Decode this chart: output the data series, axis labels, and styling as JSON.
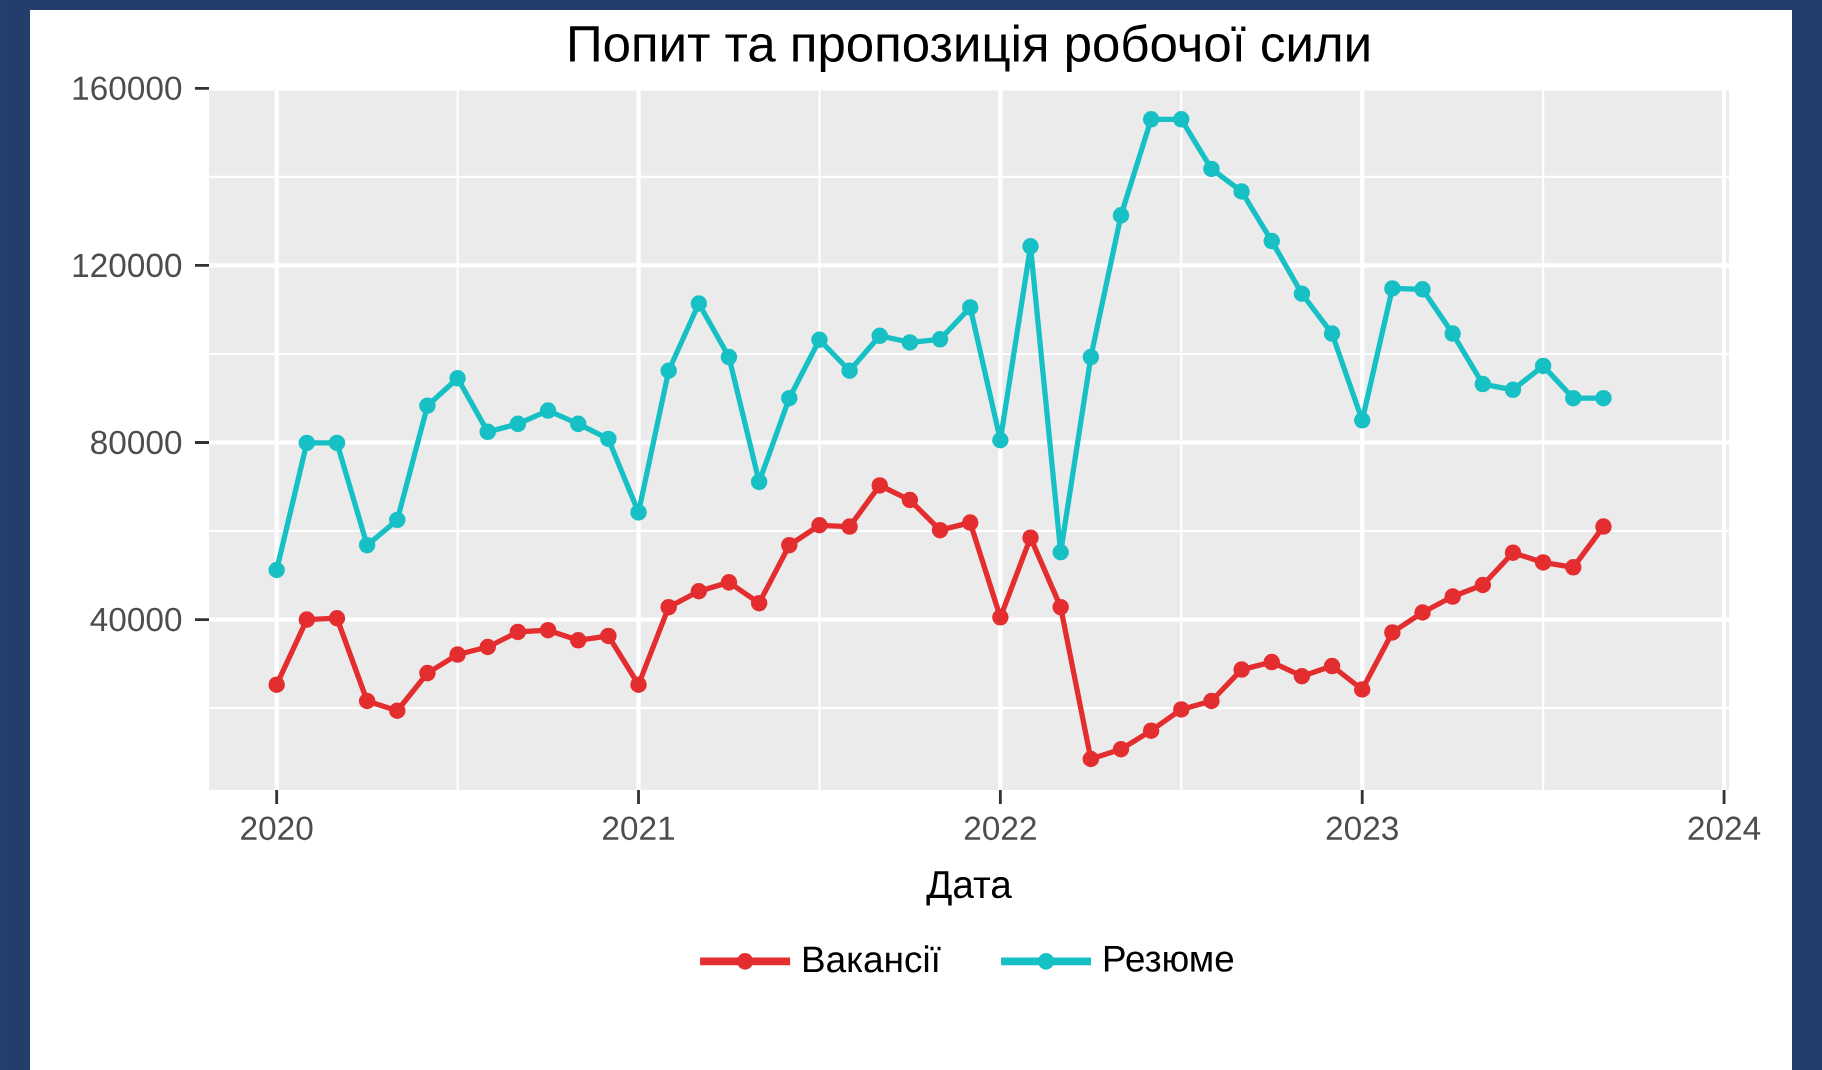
{
  "chart_data": {
    "type": "line",
    "title": "Попит та пропозиція робочої сили",
    "xlabel": "Дата",
    "x": [
      "2020-01",
      "2020-02",
      "2020-03",
      "2020-04",
      "2020-05",
      "2020-06",
      "2020-07",
      "2020-08",
      "2020-09",
      "2020-10",
      "2020-11",
      "2020-12",
      "2021-01",
      "2021-02",
      "2021-03",
      "2021-04",
      "2021-05",
      "2021-06",
      "2021-07",
      "2021-08",
      "2021-09",
      "2021-10",
      "2021-11",
      "2021-12",
      "2022-01",
      "2022-02",
      "2022-03",
      "2022-04",
      "2022-05",
      "2022-06",
      "2022-07",
      "2022-08",
      "2022-09",
      "2022-10",
      "2022-11",
      "2022-12",
      "2023-01",
      "2023-02",
      "2023-03",
      "2023-04",
      "2023-05",
      "2023-06",
      "2023-07",
      "2023-08",
      "2023-09"
    ],
    "series": [
      {
        "name": "Вакансії",
        "color": "#e32d2f",
        "values": [
          25300,
          40000,
          40300,
          21600,
          19400,
          27900,
          32100,
          33800,
          37200,
          37600,
          35300,
          36300,
          25300,
          42800,
          46400,
          48400,
          43700,
          56800,
          61300,
          61000,
          70300,
          67000,
          60200,
          61900,
          40500,
          58500,
          42800,
          8500,
          10700,
          14900,
          19700,
          21600,
          28700,
          30400,
          27200,
          29500,
          24200,
          37100,
          41600,
          45200,
          47800,
          55100,
          52900,
          51800,
          61000
        ]
      },
      {
        "name": "Резюме",
        "color": "#17c0c4",
        "values": [
          51200,
          79900,
          79900,
          56800,
          62500,
          88300,
          94500,
          82400,
          84200,
          87200,
          84200,
          80800,
          64200,
          96200,
          111400,
          99300,
          71100,
          90000,
          103200,
          96200,
          104100,
          102600,
          103300,
          110500,
          80500,
          124300,
          55200,
          99300,
          131300,
          153000,
          153000,
          141800,
          136700,
          125500,
          113600,
          104600,
          85000,
          114800,
          114600,
          104600,
          93200,
          91900,
          97300,
          90000,
          90000
        ]
      }
    ],
    "xlim": [
      "2019-10-24",
      "2024-01-06"
    ],
    "xticks": [
      "2020",
      "2021",
      "2022",
      "2023",
      "2024"
    ],
    "ylim": [
      1500,
      160300
    ],
    "yticks": [
      40000,
      80000,
      120000,
      160000
    ],
    "grid": true,
    "legend": "bottom",
    "marker": "circle",
    "line_style": "solid"
  }
}
